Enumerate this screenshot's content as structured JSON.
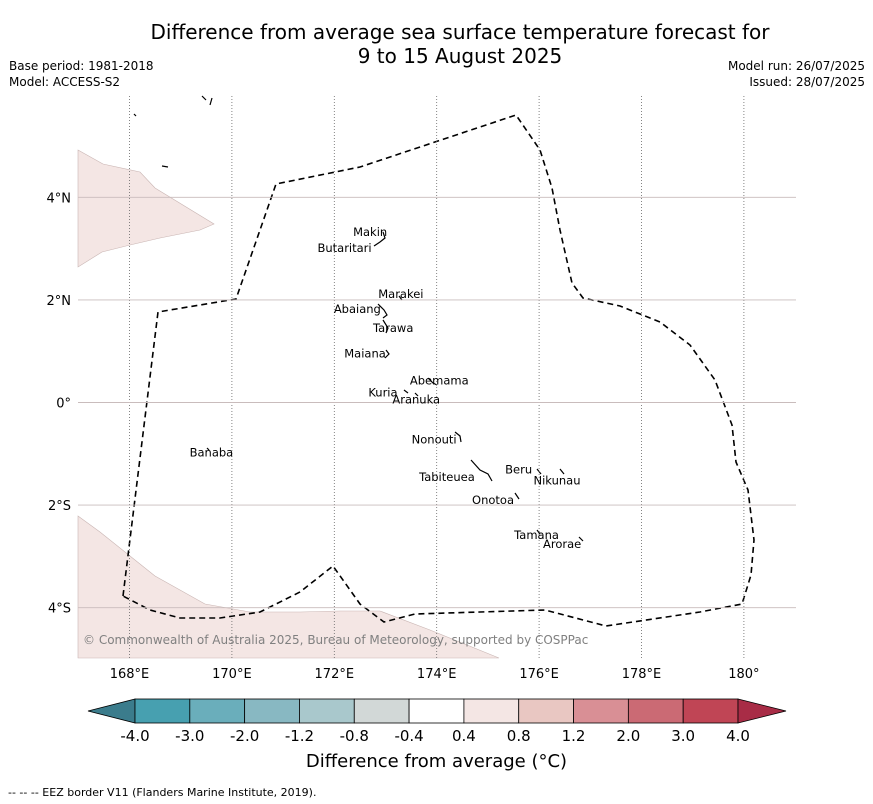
{
  "title_line1": "Difference from average sea surface temperature forecast for",
  "title_line2": "9 to 15 August 2025",
  "base_period": "Base period: 1981-2018",
  "model": "Model: ACCESS-S2",
  "model_run": "Model run: 26/07/2025",
  "issued": "Issued: 28/07/2025",
  "copyright": "© Commonwealth of Australia 2025, Bureau of Meteorology, supported by COSPPac",
  "footer": "-- -- -- EEZ border V11 (Flanders Marine Institute, 2019).",
  "colorbar": {
    "label": "Difference from average (°C)",
    "ticks": [
      "-4.0",
      "-3.0",
      "-2.0",
      "-1.2",
      "-0.8",
      "-0.4",
      "0.4",
      "0.8",
      "1.2",
      "2.0",
      "3.0",
      "4.0"
    ],
    "colors": [
      "#3b7c8c",
      "#47a0b0",
      "#6aaebb",
      "#88b8c2",
      "#a9c8cc",
      "#d2d8d7",
      "#ffffff",
      "#f4e6e4",
      "#e9c7c2",
      "#d98f95",
      "#cb6a74",
      "#c04555",
      "#a82c46"
    ]
  },
  "axes": {
    "x_ticks": [
      "168°E",
      "170°E",
      "172°E",
      "174°E",
      "176°E",
      "178°E",
      "180°"
    ],
    "x_values": [
      168,
      170,
      172,
      174,
      176,
      178,
      180
    ],
    "y_ticks": [
      "4°N",
      "2°N",
      "0°",
      "2°S",
      "4°S"
    ],
    "y_values": [
      4,
      2,
      0,
      -2,
      -4
    ],
    "lon_range": [
      167,
      181
    ],
    "lat_range": [
      -5,
      6
    ]
  },
  "places": [
    {
      "name": "Makin",
      "lon": 172.7,
      "lat": 3.25
    },
    {
      "name": "Butaritari",
      "lon": 172.2,
      "lat": 2.93
    },
    {
      "name": "Marakei",
      "lon": 173.3,
      "lat": 2.04
    },
    {
      "name": "Abaiang",
      "lon": 172.45,
      "lat": 1.74
    },
    {
      "name": "Tarawa",
      "lon": 173.15,
      "lat": 1.37
    },
    {
      "name": "Maiana",
      "lon": 172.6,
      "lat": 0.88
    },
    {
      "name": "Abemama",
      "lon": 174.05,
      "lat": 0.35
    },
    {
      "name": "Kuria",
      "lon": 172.95,
      "lat": 0.12
    },
    {
      "name": "Aranuka",
      "lon": 173.6,
      "lat": -0.02
    },
    {
      "name": "Nonouti",
      "lon": 173.95,
      "lat": -0.8
    },
    {
      "name": "Banaba",
      "lon": 169.6,
      "lat": -1.05
    },
    {
      "name": "Beru",
      "lon": 175.6,
      "lat": -1.38
    },
    {
      "name": "Nikunau",
      "lon": 176.35,
      "lat": -1.6
    },
    {
      "name": "Tabiteuea",
      "lon": 174.2,
      "lat": -1.53
    },
    {
      "name": "Onotoa",
      "lon": 175.1,
      "lat": -1.98
    },
    {
      "name": "Tamana",
      "lon": 175.95,
      "lat": -2.66
    },
    {
      "name": "Arorae",
      "lon": 176.45,
      "lat": -2.84
    }
  ]
}
